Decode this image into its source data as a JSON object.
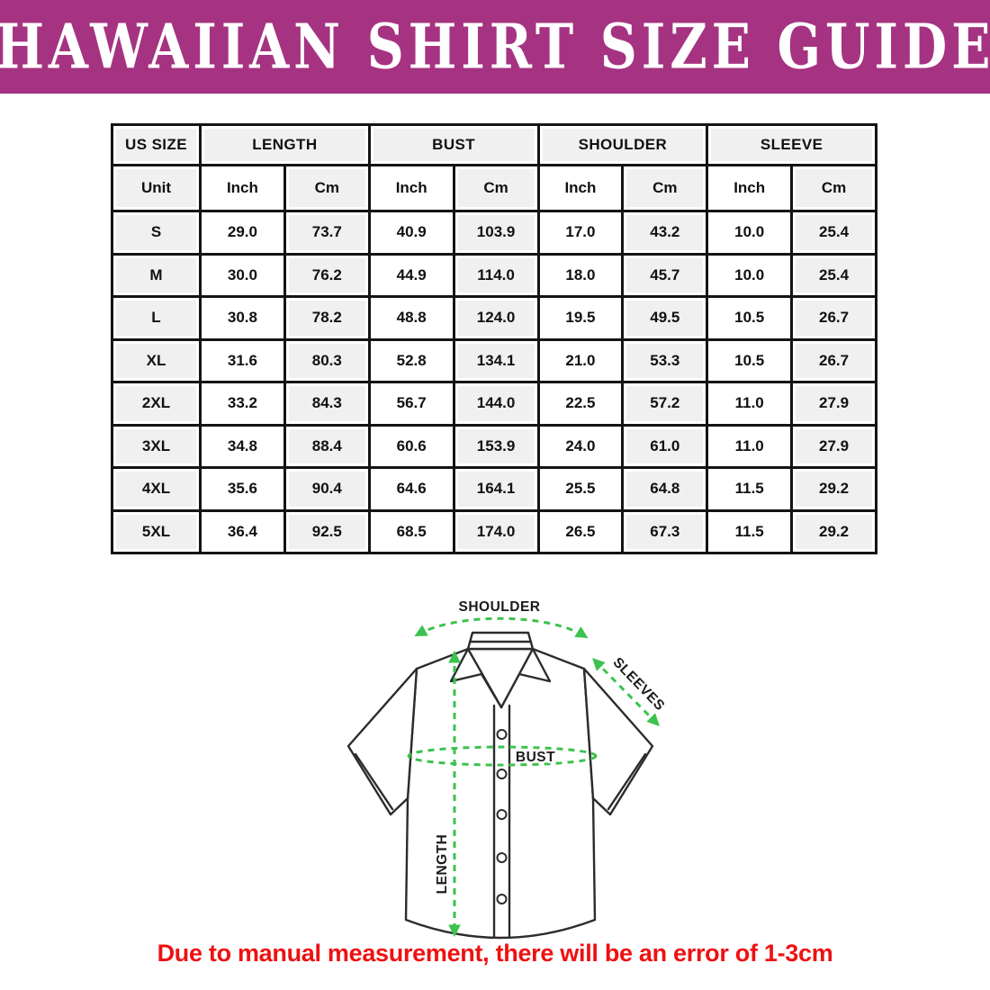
{
  "banner": {
    "title": "HAWAIIAN SHIRT SIZE GUIDE",
    "bg_color": "#a53381",
    "text_color": "#ffffff"
  },
  "table": {
    "group_headers": [
      "US SIZE",
      "LENGTH",
      "BUST",
      "SHOULDER",
      "SLEEVE"
    ],
    "unit_row": [
      "Unit",
      "Inch",
      "Cm",
      "Inch",
      "Cm",
      "Inch",
      "Cm",
      "Inch",
      "Cm"
    ],
    "rows": [
      {
        "size": "S",
        "values": [
          "29.0",
          "73.7",
          "40.9",
          "103.9",
          "17.0",
          "43.2",
          "10.0",
          "25.4"
        ]
      },
      {
        "size": "M",
        "values": [
          "30.0",
          "76.2",
          "44.9",
          "114.0",
          "18.0",
          "45.7",
          "10.0",
          "25.4"
        ]
      },
      {
        "size": "L",
        "values": [
          "30.8",
          "78.2",
          "48.8",
          "124.0",
          "19.5",
          "49.5",
          "10.5",
          "26.7"
        ]
      },
      {
        "size": "XL",
        "values": [
          "31.6",
          "80.3",
          "52.8",
          "134.1",
          "21.0",
          "53.3",
          "10.5",
          "26.7"
        ]
      },
      {
        "size": "2XL",
        "values": [
          "33.2",
          "84.3",
          "56.7",
          "144.0",
          "22.5",
          "57.2",
          "11.0",
          "27.9"
        ]
      },
      {
        "size": "3XL",
        "values": [
          "34.8",
          "88.4",
          "60.6",
          "153.9",
          "24.0",
          "61.0",
          "11.0",
          "27.9"
        ]
      },
      {
        "size": "4XL",
        "values": [
          "35.6",
          "90.4",
          "64.6",
          "164.1",
          "25.5",
          "64.8",
          "11.5",
          "29.2"
        ]
      },
      {
        "size": "5XL",
        "values": [
          "36.4",
          "92.5",
          "68.5",
          "174.0",
          "26.5",
          "67.3",
          "11.5",
          "29.2"
        ]
      }
    ]
  },
  "diagram": {
    "labels": {
      "shoulder": "SHOULDER",
      "sleeves": "SLEEVES",
      "bust": "BUST",
      "length": "LENGTH"
    },
    "arrow_color": "#3cc24e",
    "line_color": "#2c2c2c"
  },
  "footnote": {
    "text": "Due to manual measurement, there will be an error of 1-3cm",
    "color": "#ee1111"
  },
  "chart_data": {
    "type": "table",
    "title": "HAWAIIAN SHIRT SIZE GUIDE",
    "columns": [
      "US SIZE",
      "LENGTH Inch",
      "LENGTH Cm",
      "BUST Inch",
      "BUST Cm",
      "SHOULDER Inch",
      "SHOULDER Cm",
      "SLEEVE Inch",
      "SLEEVE Cm"
    ],
    "rows": [
      [
        "S",
        29.0,
        73.7,
        40.9,
        103.9,
        17.0,
        43.2,
        10.0,
        25.4
      ],
      [
        "M",
        30.0,
        76.2,
        44.9,
        114.0,
        18.0,
        45.7,
        10.0,
        25.4
      ],
      [
        "L",
        30.8,
        78.2,
        48.8,
        124.0,
        19.5,
        49.5,
        10.5,
        26.7
      ],
      [
        "XL",
        31.6,
        80.3,
        52.8,
        134.1,
        21.0,
        53.3,
        10.5,
        26.7
      ],
      [
        "2XL",
        33.2,
        84.3,
        56.7,
        144.0,
        22.5,
        57.2,
        11.0,
        27.9
      ],
      [
        "3XL",
        34.8,
        88.4,
        60.6,
        153.9,
        24.0,
        61.0,
        11.0,
        27.9
      ],
      [
        "4XL",
        35.6,
        90.4,
        64.6,
        164.1,
        25.5,
        64.8,
        11.5,
        29.2
      ],
      [
        "5XL",
        36.4,
        92.5,
        68.5,
        174.0,
        26.5,
        67.3,
        11.5,
        29.2
      ]
    ]
  }
}
